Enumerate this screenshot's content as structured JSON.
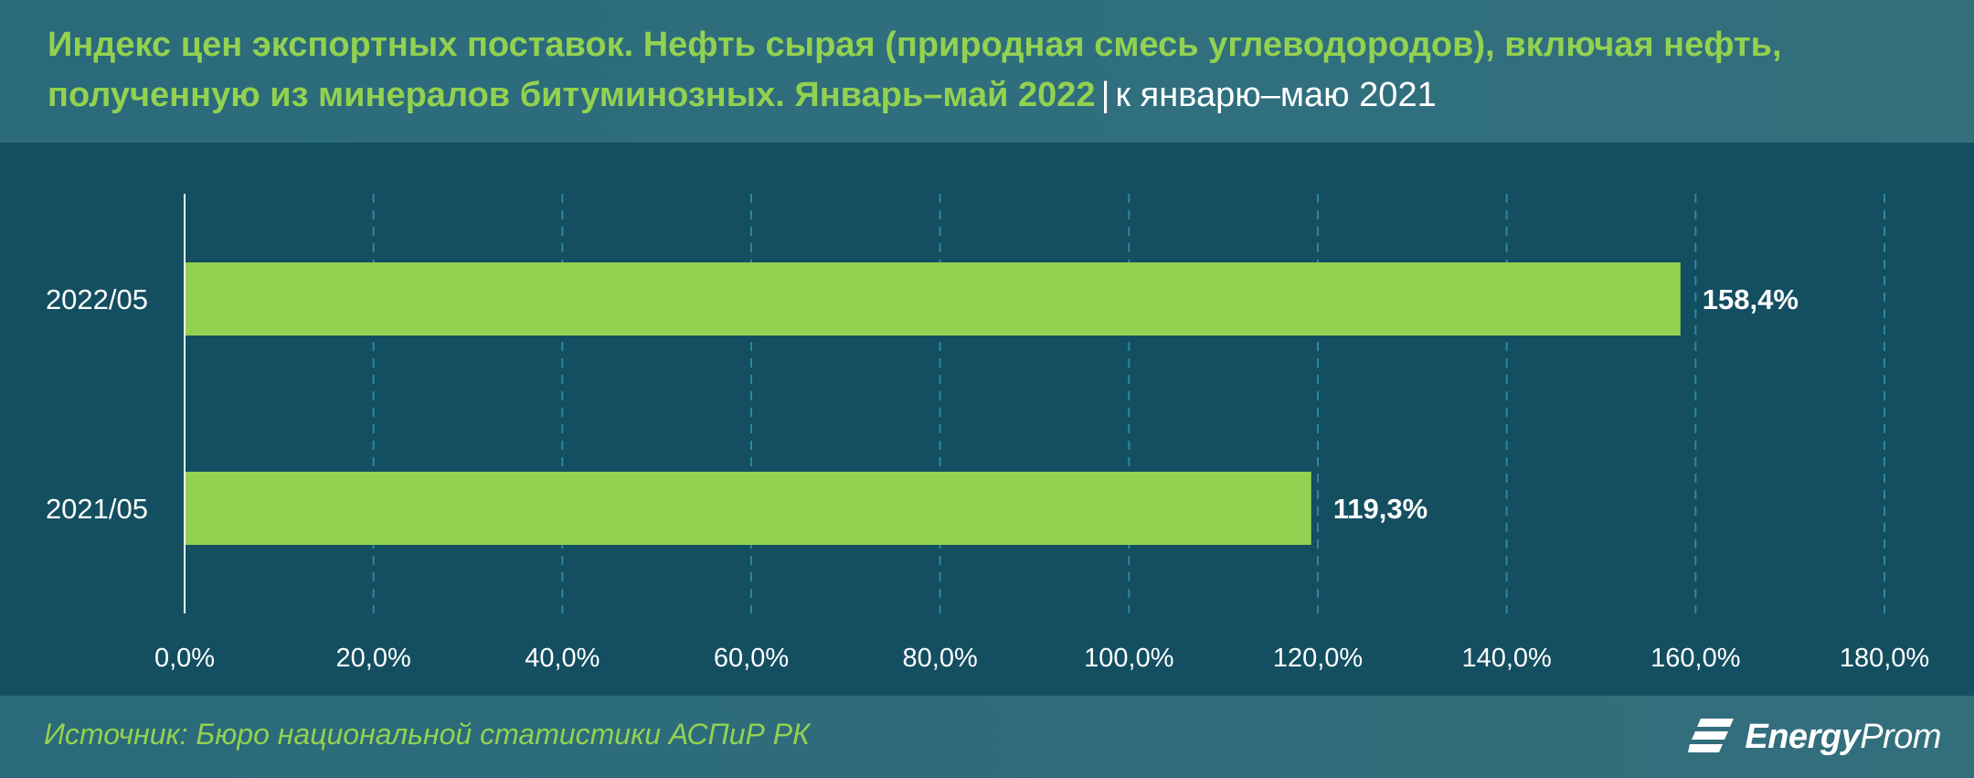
{
  "header": {
    "title": "Индекс цен экспортных поставок. Нефть сырая (природная смесь углеводородов), включая нефть, полученную из минералов битуминозных. Январь–май 2022",
    "separator": "|",
    "subtitle": "к январю–маю 2021"
  },
  "footer": {
    "source": "Источник: Бюро национальной статистики АСПиР РК",
    "brand_bold": "Energy",
    "brand_light": "Prom",
    "brand_icon": "energyprom-logo-icon"
  },
  "colors": {
    "background": "#134f61",
    "header_bg": "#2f6f7e",
    "bar": "#93d150",
    "title": "#93d150",
    "text": "#ffffff",
    "grid": "#2a88a0"
  },
  "chart_data": {
    "type": "bar",
    "orientation": "horizontal",
    "categories": [
      "2022/05",
      "2021/05"
    ],
    "values": [
      158.4,
      119.3
    ],
    "data_labels": [
      "158,4%",
      "119,3%"
    ],
    "x_ticks": [
      "0,0%",
      "20,0%",
      "40,0%",
      "60,0%",
      "80,0%",
      "100,0%",
      "120,0%",
      "140,0%",
      "160,0%",
      "180,0%"
    ],
    "xlim": [
      0,
      180
    ],
    "grid": "vertical-dashed",
    "legend": "none"
  }
}
